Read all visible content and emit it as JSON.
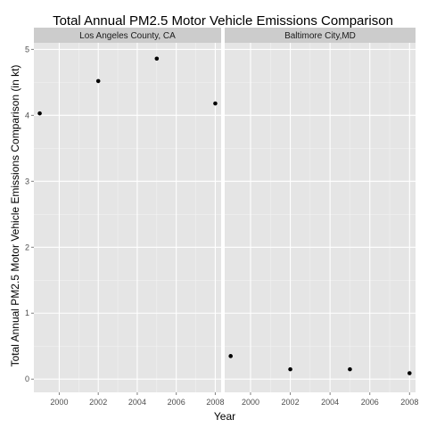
{
  "chart_data": {
    "type": "scatter",
    "title": "Total Annual PM2.5 Motor Vehicle Emissions Comparison",
    "xlabel": "Year",
    "ylabel": "Total Annual PM2.5 Motor Vehicle Emissions Comparison (in kt)",
    "xlim": [
      1998.7,
      2008.3
    ],
    "ylim": [
      -0.2,
      5.1
    ],
    "grid": true,
    "x_ticks": [
      2000,
      2002,
      2004,
      2006,
      2008
    ],
    "x_tick_labels": [
      "2000",
      "2002",
      "2004",
      "2006",
      "2008"
    ],
    "y_ticks": [
      0,
      1,
      2,
      3,
      4,
      5
    ],
    "y_tick_labels": [
      "0",
      "1",
      "2",
      "3",
      "4",
      "5"
    ],
    "panels": [
      {
        "label": "Los Angeles County, CA",
        "x": [
          1999,
          2002,
          2005,
          2008
        ],
        "y": [
          4.03,
          4.52,
          4.86,
          4.18
        ]
      },
      {
        "label": "Baltimore City,MD",
        "x": [
          1999,
          2002,
          2005,
          2008
        ],
        "y": [
          0.35,
          0.15,
          0.15,
          0.09
        ]
      }
    ],
    "colors": {
      "panel_bg": "#e5e5e5",
      "strip_bg": "#cccccc",
      "grid_major": "#ffffff",
      "grid_minor": "#f2f2f2",
      "point": "#000000"
    }
  }
}
